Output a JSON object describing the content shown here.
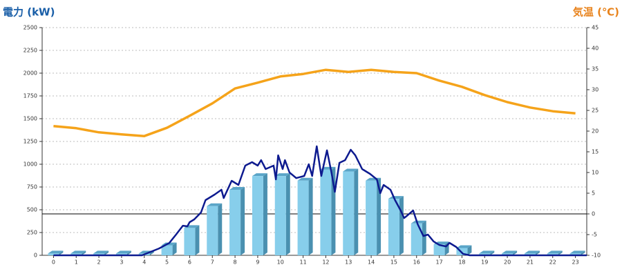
{
  "chart_data": {
    "type": "combo",
    "title_left": "電力 (kW)",
    "title_right": "気温 (℃)",
    "title_left_color": "#1a5fa8",
    "title_right_color": "#e8831c",
    "categories": [
      "0",
      "1",
      "2",
      "3",
      "4",
      "5",
      "6",
      "7",
      "8",
      "9",
      "10",
      "11",
      "12",
      "13",
      "14",
      "15",
      "16",
      "17",
      "18",
      "19",
      "20",
      "21",
      "22",
      "23"
    ],
    "xlim": [
      -0.5,
      23.5
    ],
    "ylim": [
      0,
      2500
    ],
    "yticks": [
      0,
      250,
      500,
      750,
      1000,
      1250,
      1500,
      1750,
      2000,
      2250,
      2500
    ],
    "y2lim": [
      -10,
      45
    ],
    "y2ticks": [
      -10,
      -5,
      0,
      5,
      10,
      15,
      20,
      25,
      30,
      35,
      40,
      45
    ],
    "y2_reference_line": 0,
    "grid": true,
    "series": [
      {
        "kind": "bar",
        "color": "#87ceeb",
        "values": [
          20,
          20,
          20,
          20,
          20,
          110,
          300,
          540,
          720,
          870,
          870,
          820,
          940,
          920,
          820,
          620,
          350,
          120,
          80,
          20,
          20,
          20,
          20,
          20
        ]
      },
      {
        "kind": "line",
        "color": "#0d1a8f",
        "x": [
          0,
          3.9,
          4.65,
          5.1,
          5.4,
          5.7,
          5.9,
          6.0,
          6.2,
          6.5,
          6.7,
          7.1,
          7.4,
          7.5,
          7.85,
          8.15,
          8.45,
          8.75,
          9.0,
          9.15,
          9.35,
          9.7,
          9.8,
          9.9,
          10.1,
          10.2,
          10.4,
          10.7,
          11.05,
          11.25,
          11.4,
          11.6,
          11.8,
          12.05,
          12.25,
          12.4,
          12.6,
          12.85,
          13.1,
          13.3,
          13.6,
          13.95,
          14.25,
          14.4,
          14.55,
          14.85,
          15.05,
          15.3,
          15.45,
          15.6,
          15.85,
          16.05,
          16.3,
          16.5,
          16.75,
          17.0,
          17.3,
          17.45,
          17.75,
          18.05,
          18.35,
          23.5
        ],
        "values": [
          0,
          0,
          75,
          135,
          227,
          325,
          318,
          364,
          394,
          470,
          606,
          667,
          720,
          629,
          818,
          773,
          985,
          1023,
          985,
          1045,
          947,
          985,
          833,
          1098,
          947,
          1045,
          909,
          848,
          871,
          1000,
          871,
          1197,
          871,
          1152,
          909,
          697,
          1015,
          1045,
          1159,
          1098,
          947,
          894,
          833,
          682,
          773,
          720,
          606,
          492,
          409,
          439,
          492,
          341,
          212,
          227,
          152,
          114,
          98,
          136,
          91,
          15,
          0,
          0
        ]
      },
      {
        "kind": "line",
        "axis": "y2",
        "color": "#f5a31a",
        "values": [
          21.2,
          20.7,
          19.7,
          19.2,
          18.8,
          20.8,
          23.7,
          26.7,
          30.3,
          31.7,
          33.2,
          33.8,
          34.8,
          34.3,
          34.8,
          34.3,
          34,
          32.2,
          30.7,
          28.7,
          27,
          25.7,
          24.8,
          24.3
        ]
      }
    ]
  }
}
